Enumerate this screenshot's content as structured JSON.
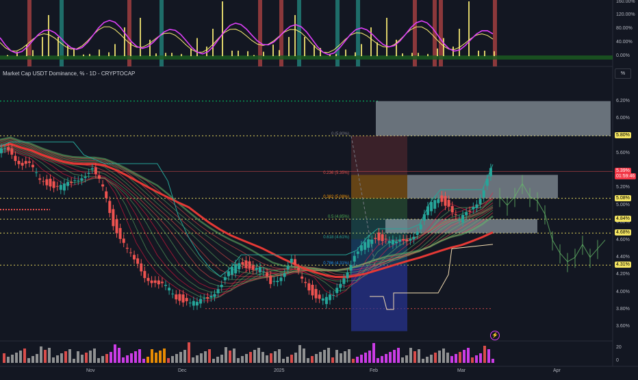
{
  "chart_title": "Market Cap USDT Dominance, % - 1D - CRYPTOCAP",
  "unit_button": "%",
  "oscillator_axis": [
    "160.00%",
    "120.00%",
    "80.00%",
    "40.00%",
    "0.00%"
  ],
  "price_axis": [
    "6.20%",
    "6.00%",
    "5.60%",
    "5.20%",
    "5.00%",
    "4.80%",
    "4.60%",
    "4.40%",
    "4.20%",
    "4.00%",
    "3.80%",
    "3.60%"
  ],
  "volume_axis": [
    "20",
    "0"
  ],
  "x_axis": [
    "Nov",
    "Dec",
    "2025",
    "Feb",
    "Mar",
    "Apr"
  ],
  "price_tags": [
    {
      "label": "5.80%",
      "bg": "#f5e663",
      "fg": "#000000"
    },
    {
      "label": "5.39%",
      "bg": "#f23645",
      "fg": "#ffffff"
    },
    {
      "label": "01:59:46",
      "bg": "#f23645",
      "fg": "#ffffff"
    },
    {
      "label": "5.08%",
      "bg": "#f5e663",
      "fg": "#000000"
    },
    {
      "label": "4.84%",
      "bg": "#f5e663",
      "fg": "#000000"
    },
    {
      "label": "4.68%",
      "bg": "#f5e663",
      "fg": "#000000"
    },
    {
      "label": "4.31%",
      "bg": "#f5e663",
      "fg": "#000000"
    }
  ],
  "fib_labels": [
    "0 (5.80%)",
    "0.236 (5.35%)",
    "0.382 (5.08%)",
    "0.5 (4.85%)",
    "0.618 (4.61%)",
    "0.786 (4.31%)"
  ],
  "flash_icon": "lightning-icon",
  "chart_data": {
    "type": "candlestick",
    "title": "Market Cap USDT Dominance, % - 1D - CRYPTOCAP",
    "ylim": [
      3.5,
      6.3
    ],
    "fib_levels": [
      5.8,
      5.35,
      5.08,
      4.85,
      4.61,
      4.31
    ],
    "close_path": [
      5.6,
      5.65,
      5.5,
      5.45,
      5.3,
      5.25,
      5.2,
      5.25,
      5.35,
      5.4,
      5.2,
      4.8,
      4.55,
      4.35,
      4.2,
      4.1,
      4.05,
      3.95,
      3.9,
      3.85,
      3.95,
      4.05,
      4.2,
      4.35,
      4.3,
      4.25,
      4.1,
      4.2,
      4.35,
      4.15,
      4.0,
      3.9,
      3.95,
      4.2,
      4.4,
      4.55,
      4.65,
      4.6,
      4.55,
      4.62,
      4.7,
      4.95,
      5.1,
      5.0,
      4.8,
      4.95,
      5.1,
      5.39
    ],
    "projection_path": [
      5.1,
      5.0,
      5.1,
      5.25,
      5.1,
      5.05,
      4.9,
      4.6,
      4.45,
      4.35,
      4.4,
      4.55,
      4.4,
      4.5,
      4.6
    ],
    "colors": {
      "up": "#26a69a",
      "down": "#ef5350",
      "ribbon_up": "#00e676",
      "ribbon_down": "#ff1744"
    }
  }
}
